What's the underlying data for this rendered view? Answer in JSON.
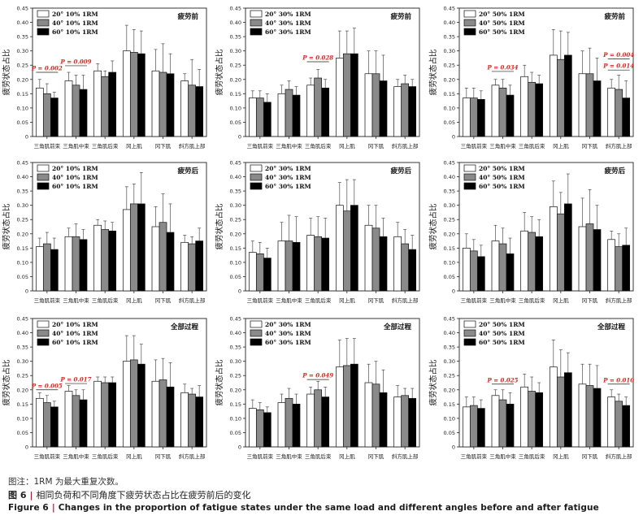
{
  "charts": [
    {
      "legend": [
        "20° 10% 1RM",
        "40° 10% 1RM",
        "60° 10% 1RM"
      ],
      "stage": "疲劳前",
      "values": [
        [
          0.17,
          0.15,
          0.135
        ],
        [
          0.195,
          0.18,
          0.165
        ],
        [
          0.23,
          0.21,
          0.225
        ],
        [
          0.3,
          0.295,
          0.29
        ],
        [
          0.23,
          0.225,
          0.22
        ],
        [
          0.195,
          0.18,
          0.175
        ]
      ],
      "errors": [
        [
          0.03,
          0.035,
          0.02
        ],
        [
          0.03,
          0.035,
          0.05
        ],
        [
          0.025,
          0.02,
          0.04
        ],
        [
          0.09,
          0.08,
          0.08
        ],
        [
          0.075,
          0.1,
          0.07
        ],
        [
          0.025,
          0.09,
          0.06
        ]
      ],
      "annotations": [
        {
          "i": 0,
          "text": "P = 0.002",
          "y": 0.225
        },
        {
          "i": 1,
          "text": "P = 0.009",
          "y": 0.248
        }
      ]
    },
    {
      "legend": [
        "20° 30% 1RM",
        "40° 30% 1RM",
        "60° 30% 1RM"
      ],
      "stage": "疲劳前",
      "values": [
        [
          0.135,
          0.135,
          0.12
        ],
        [
          0.15,
          0.165,
          0.145
        ],
        [
          0.18,
          0.205,
          0.17
        ],
        [
          0.275,
          0.29,
          0.29
        ],
        [
          0.22,
          0.22,
          0.195
        ],
        [
          0.175,
          0.185,
          0.175
        ]
      ],
      "errors": [
        [
          0.025,
          0.025,
          0.03
        ],
        [
          0.03,
          0.03,
          0.03
        ],
        [
          0.025,
          0.03,
          0.03
        ],
        [
          0.095,
          0.08,
          0.09
        ],
        [
          0.08,
          0.08,
          0.09
        ],
        [
          0.025,
          0.03,
          0.025
        ]
      ],
      "annotations": [
        {
          "i": 2,
          "text": "P = 0.028",
          "y": 0.262
        }
      ]
    },
    {
      "legend": [
        "20° 50% 1RM",
        "40° 50% 1RM",
        "60° 50% 1RM"
      ],
      "stage": "疲劳前",
      "values": [
        [
          0.135,
          0.135,
          0.13
        ],
        [
          0.18,
          0.17,
          0.145
        ],
        [
          0.21,
          0.19,
          0.185
        ],
        [
          0.285,
          0.27,
          0.285
        ],
        [
          0.22,
          0.22,
          0.195
        ],
        [
          0.17,
          0.165,
          0.135
        ]
      ],
      "errors": [
        [
          0.035,
          0.035,
          0.03
        ],
        [
          0.02,
          0.03,
          0.035
        ],
        [
          0.04,
          0.035,
          0.03
        ],
        [
          0.09,
          0.1,
          0.08
        ],
        [
          0.08,
          0.09,
          0.08
        ],
        [
          0.03,
          0.05,
          0.06
        ]
      ],
      "annotations": [
        {
          "i": 1,
          "text": "P = 0.034",
          "y": 0.228
        },
        {
          "i": 5,
          "text": "P = 0.004",
          "y": 0.272
        },
        {
          "i": 5,
          "text": "P = 0.014",
          "y": 0.233
        }
      ]
    },
    {
      "legend": [
        "20° 10% 1RM",
        "40° 10% 1RM",
        "60° 10% 1RM"
      ],
      "stage": "疲劳后",
      "values": [
        [
          0.155,
          0.165,
          0.145
        ],
        [
          0.19,
          0.19,
          0.18
        ],
        [
          0.23,
          0.215,
          0.21
        ],
        [
          0.285,
          0.305,
          0.305
        ],
        [
          0.225,
          0.24,
          0.205
        ],
        [
          0.17,
          0.165,
          0.175
        ]
      ],
      "errors": [
        [
          0.03,
          0.04,
          0.04
        ],
        [
          0.03,
          0.045,
          0.035
        ],
        [
          0.02,
          0.03,
          0.03
        ],
        [
          0.08,
          0.07,
          0.11
        ],
        [
          0.07,
          0.1,
          0.1
        ],
        [
          0.025,
          0.025,
          0.045
        ]
      ],
      "annotations": []
    },
    {
      "legend": [
        "20° 30% 1RM",
        "40° 30% 1RM",
        "60° 30% 1RM"
      ],
      "stage": "疲劳后",
      "values": [
        [
          0.135,
          0.13,
          0.115
        ],
        [
          0.175,
          0.175,
          0.17
        ],
        [
          0.195,
          0.19,
          0.185
        ],
        [
          0.3,
          0.28,
          0.3
        ],
        [
          0.23,
          0.22,
          0.19
        ],
        [
          0.19,
          0.165,
          0.145
        ]
      ],
      "errors": [
        [
          0.04,
          0.04,
          0.035
        ],
        [
          0.065,
          0.09,
          0.09
        ],
        [
          0.06,
          0.07,
          0.07
        ],
        [
          0.08,
          0.11,
          0.09
        ],
        [
          0.07,
          0.08,
          0.065
        ],
        [
          0.05,
          0.05,
          0.05
        ]
      ],
      "annotations": []
    },
    {
      "legend": [
        "20° 50% 1RM",
        "40° 50% 1RM",
        "60° 50% 1RM"
      ],
      "stage": "疲劳后",
      "values": [
        [
          0.15,
          0.14,
          0.12
        ],
        [
          0.175,
          0.165,
          0.13
        ],
        [
          0.21,
          0.205,
          0.19
        ],
        [
          0.295,
          0.27,
          0.305
        ],
        [
          0.225,
          0.235,
          0.215
        ],
        [
          0.18,
          0.155,
          0.16
        ]
      ],
      "errors": [
        [
          0.05,
          0.04,
          0.04
        ],
        [
          0.055,
          0.055,
          0.055
        ],
        [
          0.065,
          0.055,
          0.06
        ],
        [
          0.09,
          0.075,
          0.105
        ],
        [
          0.1,
          0.12,
          0.085
        ],
        [
          0.03,
          0.045,
          0.06
        ]
      ],
      "annotations": []
    },
    {
      "legend": [
        "20° 10% 1RM",
        "40° 10% 1RM",
        "60° 10% 1RM"
      ],
      "stage": "全部过程",
      "values": [
        [
          0.17,
          0.155,
          0.14
        ],
        [
          0.195,
          0.18,
          0.165
        ],
        [
          0.23,
          0.225,
          0.225
        ],
        [
          0.3,
          0.305,
          0.29
        ],
        [
          0.23,
          0.235,
          0.21
        ],
        [
          0.19,
          0.185,
          0.175
        ]
      ],
      "errors": [
        [
          0.02,
          0.025,
          0.02
        ],
        [
          0.02,
          0.02,
          0.035
        ],
        [
          0.015,
          0.02,
          0.02
        ],
        [
          0.09,
          0.085,
          0.07
        ],
        [
          0.075,
          0.075,
          0.085
        ],
        [
          0.03,
          0.02,
          0.04
        ]
      ],
      "annotations": [
        {
          "i": 0,
          "text": "P = 0.005",
          "y": 0.2
        },
        {
          "i": 1,
          "text": "P = 0.017",
          "y": 0.222
        }
      ]
    },
    {
      "legend": [
        "20° 30% 1RM",
        "40° 30% 1RM",
        "60° 30% 1RM"
      ],
      "stage": "全部过程",
      "values": [
        [
          0.135,
          0.13,
          0.12
        ],
        [
          0.155,
          0.17,
          0.15
        ],
        [
          0.185,
          0.2,
          0.175
        ],
        [
          0.28,
          0.285,
          0.29
        ],
        [
          0.225,
          0.22,
          0.19
        ],
        [
          0.175,
          0.18,
          0.17
        ]
      ],
      "errors": [
        [
          0.03,
          0.025,
          0.02
        ],
        [
          0.03,
          0.035,
          0.035
        ],
        [
          0.025,
          0.03,
          0.035
        ],
        [
          0.095,
          0.095,
          0.09
        ],
        [
          0.065,
          0.08,
          0.08
        ],
        [
          0.04,
          0.025,
          0.035
        ]
      ],
      "annotations": [
        {
          "i": 2,
          "text": "P = 0.049",
          "y": 0.236
        }
      ]
    },
    {
      "legend": [
        "20° 50% 1RM",
        "40° 50% 1RM",
        "60° 50% 1RM"
      ],
      "stage": "全部过程",
      "values": [
        [
          0.14,
          0.145,
          0.135
        ],
        [
          0.18,
          0.165,
          0.15
        ],
        [
          0.21,
          0.195,
          0.19
        ],
        [
          0.28,
          0.245,
          0.26
        ],
        [
          0.22,
          0.215,
          0.205
        ],
        [
          0.175,
          0.16,
          0.145
        ]
      ],
      "errors": [
        [
          0.035,
          0.03,
          0.03
        ],
        [
          0.02,
          0.035,
          0.04
        ],
        [
          0.045,
          0.05,
          0.035
        ],
        [
          0.095,
          0.095,
          0.07
        ],
        [
          0.07,
          0.075,
          0.08
        ],
        [
          0.025,
          0.025,
          0.03
        ]
      ],
      "annotations": [
        {
          "i": 1,
          "text": "P = 0.025",
          "y": 0.22
        },
        {
          "i": 5,
          "text": "P = 0.010",
          "y": 0.22
        }
      ]
    }
  ],
  "categories": [
    "三角肌前束",
    "三角肌中束",
    "三角肌后束",
    "冈上肌",
    "冈下肌",
    "斜方肌上部"
  ],
  "y_label": "疲劳状态占比",
  "y_ticks": [
    "0",
    "0.05",
    "0.10",
    "0.15",
    "0.20",
    "0.25",
    "0.30",
    "0.35",
    "0.40",
    "0.45"
  ],
  "y_range": [
    0,
    0.45
  ],
  "bar_colors": [
    "#ffffff",
    "#8a8a8a",
    "#000000"
  ],
  "annotation_color": "#e2231a",
  "note": "图注：1RM 为最大重复次数。",
  "caption_cn": {
    "number": "图 6",
    "text": "相同负荷和不同角度下疲劳状态占比在疲劳前后的变化"
  },
  "caption_en": {
    "number": "Figure 6",
    "text": "Changes in the proportion of fatigue states under the same load and different angles before and after fatigue"
  }
}
